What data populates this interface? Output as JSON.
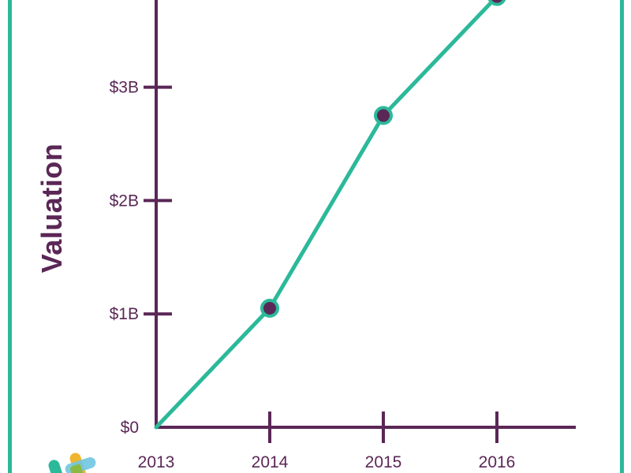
{
  "colors": {
    "frame": "#2bb99a",
    "axis": "#5a2756",
    "line": "#2bb99a",
    "marker_fill": "#5a2756",
    "marker_stroke": "#2bb99a",
    "text": "#5a2756"
  },
  "chart_data": {
    "type": "line",
    "title": "",
    "xlabel": "",
    "ylabel": "Valuation",
    "categories": [
      "2013",
      "2014",
      "2015",
      "2016"
    ],
    "series": [
      {
        "values": [
          0,
          1.05,
          2.75,
          3.8
        ]
      }
    ],
    "y_ticks": [
      {
        "value": 0,
        "label": "$0"
      },
      {
        "value": 1,
        "label": "$1B"
      },
      {
        "value": 2,
        "label": "$2B"
      },
      {
        "value": 3,
        "label": "$3B"
      }
    ],
    "ylim": [
      0,
      3.8
    ],
    "grid": false,
    "legend": "none"
  },
  "logo": {
    "colors": [
      "#2bb99a",
      "#f0b52f",
      "#6fc7e1",
      "#8aba42"
    ]
  }
}
